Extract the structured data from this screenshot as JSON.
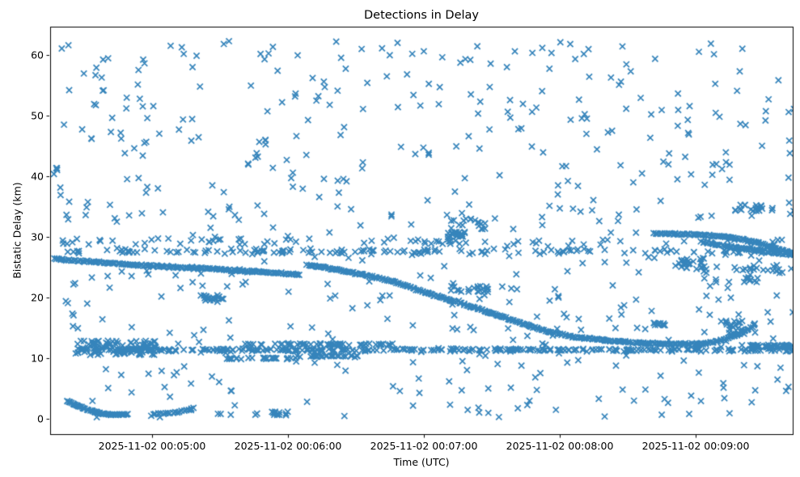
{
  "chart_data": {
    "type": "scatter",
    "title": "Detections in Delay",
    "xlabel": "Time (UTC)",
    "ylabel": "Bistatic Delay (km)",
    "marker": "x",
    "marker_color": "#1f77b4",
    "background_color": "#ffffff",
    "axis_color": "#000000",
    "grid": false,
    "legend": "none",
    "x_tick_labels": [
      "2025-11-02 00:05:00",
      "2025-11-02 00:06:00",
      "2025-11-02 00:07:00",
      "2025-11-02 00:08:00",
      "2025-11-02 00:09:00"
    ],
    "x_tick_minutes": [
      0,
      1,
      2,
      3,
      4
    ],
    "y_ticks": [
      0,
      10,
      20,
      30,
      40,
      50,
      60
    ],
    "xlim_minutes": [
      -0.75,
      4.714
    ],
    "ylim": [
      -2.53,
      64.67
    ],
    "seed": 42,
    "tracks": [
      {
        "name": "descending-track-left",
        "waypoints": [
          [
            -0.72,
            26.4
          ],
          [
            -0.4,
            25.8
          ],
          [
            0.0,
            25.2
          ],
          [
            0.45,
            24.7
          ],
          [
            0.8,
            24.2
          ],
          [
            1.08,
            23.8
          ]
        ],
        "n": 160,
        "jitter": 0.18
      },
      {
        "name": "main-descending-track",
        "waypoints": [
          [
            1.14,
            25.4
          ],
          [
            1.3,
            24.8
          ],
          [
            1.55,
            23.8
          ],
          [
            1.8,
            22.5
          ],
          [
            2.0,
            20.9
          ],
          [
            2.25,
            19.2
          ],
          [
            2.5,
            17.4
          ],
          [
            2.7,
            15.9
          ],
          [
            2.9,
            14.4
          ],
          [
            3.1,
            13.5
          ],
          [
            3.35,
            12.9
          ],
          [
            3.6,
            12.5
          ],
          [
            3.85,
            12.3
          ],
          [
            4.05,
            12.4
          ],
          [
            4.2,
            13.0
          ],
          [
            4.32,
            14.0
          ],
          [
            4.42,
            15.2
          ]
        ],
        "n": 300,
        "jitter": 0.16
      },
      {
        "name": "right-track-upper",
        "waypoints": [
          [
            3.69,
            30.6
          ],
          [
            4.0,
            30.4
          ],
          [
            4.24,
            30.0
          ],
          [
            4.45,
            29.1
          ],
          [
            4.72,
            27.2
          ]
        ],
        "n": 95,
        "jitter": 0.15
      },
      {
        "name": "right-track-lower",
        "waypoints": [
          [
            4.04,
            29.2
          ],
          [
            4.24,
            28.4
          ],
          [
            4.45,
            27.8
          ],
          [
            4.72,
            27.0
          ]
        ],
        "n": 55,
        "jitter": 0.18
      },
      {
        "name": "low-left-arc",
        "waypoints": [
          [
            -0.63,
            3.0
          ],
          [
            -0.5,
            1.7
          ],
          [
            -0.4,
            1.0
          ],
          [
            -0.3,
            0.65
          ],
          [
            -0.18,
            0.72
          ]
        ],
        "n": 50,
        "jitter": 0.12
      },
      {
        "name": "low-left-arc-2",
        "waypoints": [
          [
            0.01,
            0.75
          ],
          [
            0.18,
            1.05
          ],
          [
            0.31,
            1.8
          ]
        ],
        "n": 18,
        "jitter": 0.12
      }
    ],
    "bands": [
      {
        "name": "band-11km",
        "t0": -0.55,
        "t1": 4.73,
        "delay": 11.35,
        "n": 320,
        "jitter": 0.28
      },
      {
        "name": "band-12km-left",
        "t0": 0.6,
        "t1": 1.78,
        "delay": 12.3,
        "n": 55,
        "jitter": 0.18
      },
      {
        "name": "band-12km-right",
        "t0": 4.33,
        "t1": 4.73,
        "delay": 12.0,
        "n": 45,
        "jitter": 0.35
      },
      {
        "name": "band-10km-a",
        "t0": 0.55,
        "t1": 1.06,
        "delay": 9.95,
        "n": 26,
        "jitter": 0.15
      },
      {
        "name": "band-10km-b",
        "t0": 1.06,
        "t1": 1.56,
        "delay": 10.35,
        "n": 28,
        "jitter": 0.15
      },
      {
        "name": "band-27km",
        "t0": -0.72,
        "t1": 4.72,
        "delay": 27.6,
        "n": 135,
        "jitter": 0.5
      },
      {
        "name": "band-29km",
        "t0": -0.72,
        "t1": 4.72,
        "delay": 29.2,
        "n": 65,
        "jitter": 0.7
      }
    ],
    "clusters": [
      {
        "name": "blob-left-bottom",
        "t0": -0.57,
        "t1": 0.03,
        "d0": 10.5,
        "d1": 12.9,
        "n": 100
      },
      {
        "name": "cluster-20km",
        "t0": 0.35,
        "t1": 0.53,
        "d0": 19.4,
        "d1": 20.5,
        "n": 22
      },
      {
        "name": "cluster-30km",
        "t0": 2.17,
        "t1": 2.32,
        "d0": 30.0,
        "d1": 30.9,
        "n": 20
      },
      {
        "name": "cluster-32km",
        "t0": 2.2,
        "t1": 2.46,
        "d0": 31.3,
        "d1": 33.2,
        "n": 18
      },
      {
        "name": "cluster-21km",
        "t0": 2.18,
        "t1": 2.48,
        "d0": 20.9,
        "d1": 21.9,
        "n": 22
      },
      {
        "name": "cluster-26km",
        "t0": 3.85,
        "t1": 4.07,
        "d0": 24.6,
        "d1": 26.5,
        "n": 26
      },
      {
        "name": "cluster-24km-right",
        "t0": 4.05,
        "t1": 4.72,
        "d0": 22.5,
        "d1": 25.5,
        "n": 34
      },
      {
        "name": "cluster-15km-right",
        "t0": 4.22,
        "t1": 4.44,
        "d0": 14.0,
        "d1": 16.2,
        "n": 26
      },
      {
        "name": "cluster-16km-small",
        "t0": 3.69,
        "t1": 3.78,
        "d0": 15.4,
        "d1": 16.0,
        "n": 10
      },
      {
        "name": "cluster-35km",
        "t0": 4.28,
        "t1": 4.52,
        "d0": 34.2,
        "d1": 35.4,
        "n": 20
      },
      {
        "name": "cluster-1km-low",
        "t0": 0.88,
        "t1": 1.0,
        "d0": 0.5,
        "d1": 1.2,
        "n": 12
      }
    ],
    "noise": {
      "n": 590,
      "t0": -0.73,
      "t1": 4.73,
      "d0": 0.2,
      "d1": 62.5
    }
  }
}
